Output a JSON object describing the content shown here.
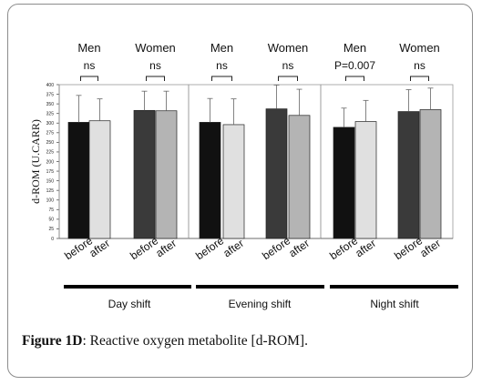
{
  "chart_data": {
    "type": "bar",
    "ylabel": "d-ROM (U.CARR)",
    "ylim": [
      0,
      400
    ],
    "yticks": [
      0,
      25,
      50,
      75,
      100,
      125,
      150,
      175,
      200,
      225,
      250,
      275,
      300,
      325,
      350,
      375,
      400
    ],
    "panels": [
      {
        "shift": "Day shift",
        "groups": [
          {
            "sex": "Men",
            "stat": "ns",
            "categories": [
              "before",
              "after"
            ],
            "values": [
              302,
              306
            ],
            "errors": [
              70,
              57
            ]
          },
          {
            "sex": "Women",
            "stat": "ns",
            "categories": [
              "before",
              "after"
            ],
            "values": [
              333,
              332
            ],
            "errors": [
              50,
              51
            ]
          }
        ]
      },
      {
        "shift": "Evening shift",
        "groups": [
          {
            "sex": "Men",
            "stat": "ns",
            "categories": [
              "before",
              "after"
            ],
            "values": [
              302,
              296
            ],
            "errors": [
              62,
              67
            ]
          },
          {
            "sex": "Women",
            "stat": "ns",
            "categories": [
              "before",
              "after"
            ],
            "values": [
              337,
              320
            ],
            "errors": [
              62,
              68
            ]
          }
        ]
      },
      {
        "shift": "Night shift",
        "groups": [
          {
            "sex": "Men",
            "stat": "P=0.007",
            "categories": [
              "before",
              "after"
            ],
            "values": [
              289,
              304
            ],
            "errors": [
              50,
              55
            ]
          },
          {
            "sex": "Women",
            "stat": "ns",
            "categories": [
              "before",
              "after"
            ],
            "values": [
              330,
              335
            ],
            "errors": [
              57,
              56
            ]
          }
        ]
      }
    ],
    "bar_colors": {
      "men_before": "#111111",
      "men_after": "#e0e0e0",
      "women_before": "#3a3a3a",
      "women_after": "#b4b4b4"
    }
  },
  "caption": {
    "label": "Figure 1D",
    "text": ": Reactive oxygen metabolite [d-ROM]."
  }
}
